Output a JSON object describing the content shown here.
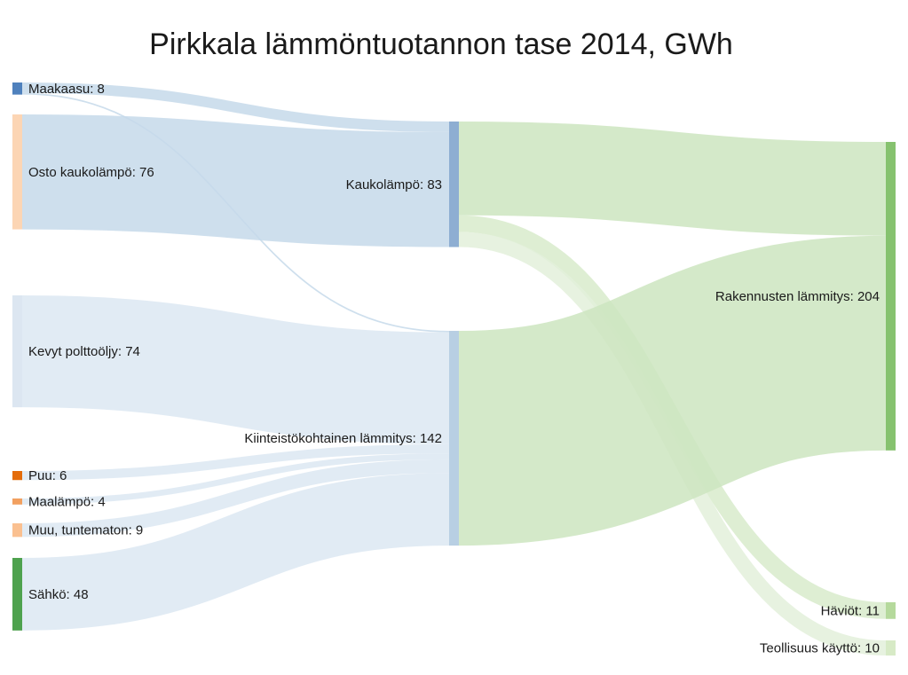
{
  "title": "Pirkkala lämmöntuotannon tase 2014, GWh",
  "chart_data": {
    "type": "sankey",
    "title": "Pirkkala lämmöntuotannon tase 2014, GWh",
    "unit": "GWh",
    "nodes": [
      {
        "id": "maakaasu",
        "label": "Maakaasu: 8",
        "name": "Maakaasu",
        "value": 8,
        "color": "#4f81bd"
      },
      {
        "id": "osto",
        "label": "Osto kaukolämpö: 76",
        "name": "Osto kaukolämpö",
        "value": 76,
        "color": "#fcd5b4"
      },
      {
        "id": "kevyt",
        "label": "Kevyt polttoöljy: 74",
        "name": "Kevyt polttoöljy",
        "value": 74,
        "color": "#dce6f1"
      },
      {
        "id": "puu",
        "label": "Puu: 6",
        "name": "Puu",
        "value": 6,
        "color": "#e46c0a"
      },
      {
        "id": "maalampo",
        "label": "Maalämpö: 4",
        "name": "Maalämpö",
        "value": 4,
        "color": "#f2a060"
      },
      {
        "id": "muu",
        "label": "Muu, tuntematon: 9",
        "name": "Muu, tuntematon",
        "value": 9,
        "color": "#fac090"
      },
      {
        "id": "sahko",
        "label": "Sähkö: 48",
        "name": "Sähkö",
        "value": 48,
        "color": "#4ea24e"
      },
      {
        "id": "kauko",
        "label": "Kaukolämpö: 83",
        "name": "Kaukolämpö",
        "value": 83,
        "color": "#8eaed2"
      },
      {
        "id": "kiint",
        "label": "Kiinteistökohtainen lämmitys: 142",
        "name": "Kiinteistökohtainen lämmitys",
        "value": 142,
        "color": "#b8cfe3"
      },
      {
        "id": "rak",
        "label": "Rakennusten lämmitys: 204",
        "name": "Rakennusten lämmitys",
        "value": 204,
        "color": "#86c26f"
      },
      {
        "id": "haviot",
        "label": "Häviöt: 11",
        "name": "Häviöt",
        "value": 11,
        "color": "#b5d99c"
      },
      {
        "id": "teoll",
        "label": "Teollisuus käyttö: 10",
        "name": "Teollisuus käyttö",
        "value": 10,
        "color": "#d7eac6"
      }
    ],
    "links": [
      {
        "source": "maakaasu",
        "target": "kauko",
        "value": 7,
        "color": "#c5d9ea"
      },
      {
        "source": "maakaasu",
        "target": "kiint",
        "value": 1,
        "color": "#c5d9ea"
      },
      {
        "source": "osto",
        "target": "kauko",
        "value": 76,
        "color": "#c5d9ea"
      },
      {
        "source": "kevyt",
        "target": "kiint",
        "value": 74,
        "color": "#dce8f2"
      },
      {
        "source": "puu",
        "target": "kiint",
        "value": 6,
        "color": "#dce8f2"
      },
      {
        "source": "maalampo",
        "target": "kiint",
        "value": 4,
        "color": "#dce8f2"
      },
      {
        "source": "muu",
        "target": "kiint",
        "value": 9,
        "color": "#dce8f2"
      },
      {
        "source": "sahko",
        "target": "kiint",
        "value": 48,
        "color": "#dce8f2"
      },
      {
        "source": "kauko",
        "target": "rak",
        "value": 62,
        "color": "#cde5bf"
      },
      {
        "source": "kauko",
        "target": "haviot",
        "value": 11,
        "color": "#d8ebcb"
      },
      {
        "source": "kauko",
        "target": "teoll",
        "value": 10,
        "color": "#e3f0da"
      },
      {
        "source": "kiint",
        "target": "rak",
        "value": 142,
        "color": "#cde5bf"
      }
    ]
  }
}
